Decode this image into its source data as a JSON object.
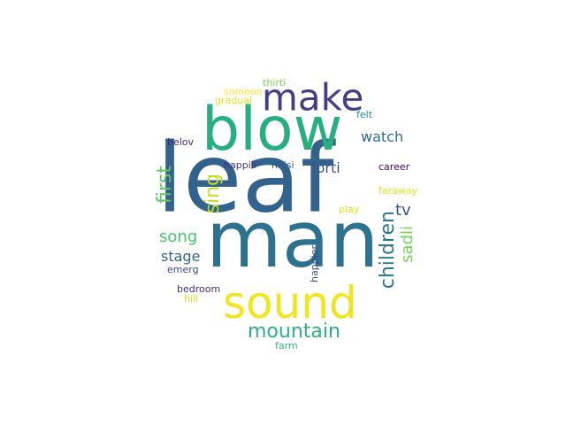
{
  "wordcloud": {
    "words": [
      {
        "text": "leaf",
        "color": "#33638d"
      },
      {
        "text": "man",
        "color": "#2c728e"
      },
      {
        "text": "blow",
        "color": "#29af7f"
      },
      {
        "text": "sound",
        "color": "#f1e51d"
      },
      {
        "text": "make",
        "color": "#433e85"
      },
      {
        "text": "mountain",
        "color": "#2db27d"
      },
      {
        "text": "children",
        "color": "#2a788e"
      },
      {
        "text": "first",
        "color": "#5ec962"
      },
      {
        "text": "sing",
        "color": "#c2df23"
      },
      {
        "text": "song",
        "color": "#4ac16d"
      },
      {
        "text": "sadli",
        "color": "#75d054"
      },
      {
        "text": "tv",
        "color": "#3b528b"
      },
      {
        "text": "watch",
        "color": "#31688e"
      },
      {
        "text": "forti",
        "color": "#3b528b"
      },
      {
        "text": "stage",
        "color": "#33638d"
      },
      {
        "text": "career",
        "color": "#440154"
      },
      {
        "text": "happili",
        "color": "#46337e"
      },
      {
        "text": "noisi",
        "color": "#38598c"
      },
      {
        "text": "belov",
        "color": "#482878"
      },
      {
        "text": "felt",
        "color": "#21918c"
      },
      {
        "text": "faraway",
        "color": "#dde318"
      },
      {
        "text": "play",
        "color": "#dde318"
      },
      {
        "text": "happier",
        "color": "#3e4989"
      },
      {
        "text": "thirti",
        "color": "#7ad151"
      },
      {
        "text": "someon",
        "color": "#fde725"
      },
      {
        "text": "gradual",
        "color": "#e5e419"
      },
      {
        "text": "emerg",
        "color": "#3e4989"
      },
      {
        "text": "bedroom",
        "color": "#472c7a"
      },
      {
        "text": "hill",
        "color": "#d0e11c"
      },
      {
        "text": "farm",
        "color": "#35b779"
      }
    ]
  }
}
